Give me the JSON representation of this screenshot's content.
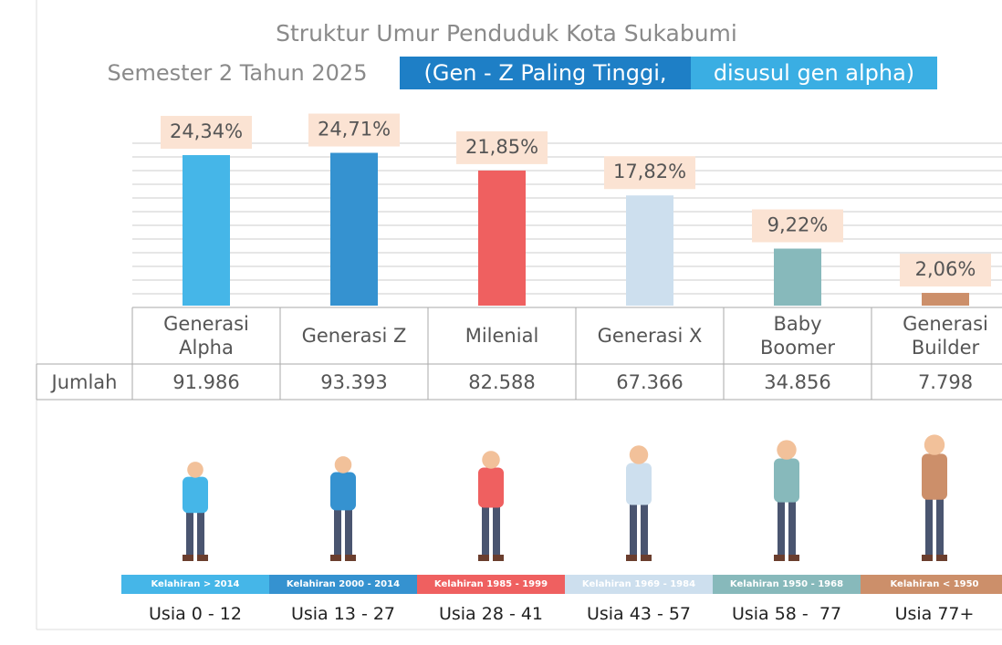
{
  "chart_data": {
    "type": "bar",
    "title": "Struktur Umur Penduduk Kota Sukabumi",
    "subtitle": "Semester 2 Tahun 2025",
    "highlight": [
      "(Gen - Z Paling Tinggi,",
      "disusul gen alpha)"
    ],
    "categories": [
      "Generasi Alpha",
      "Generasi Z",
      "Milenial",
      "Generasi X",
      "Baby Boomer",
      "Generasi Builder"
    ],
    "values": [
      24.34,
      24.71,
      21.85,
      17.82,
      9.22,
      2.06
    ],
    "value_labels": [
      "24,34%",
      "24,71%",
      "21,85%",
      "17,82%",
      "9,22%",
      "2,06%"
    ],
    "colors": [
      "#45b6e8",
      "#3592d0",
      "#ef6060",
      "#cddfee",
      "#87b9bb",
      "#cc8f6a"
    ],
    "ylim": [
      0,
      27
    ],
    "grid": true
  },
  "table": {
    "row_label": "Jumlah",
    "values": [
      "91.986",
      "93.393",
      "82.588",
      "67.366",
      "34.856",
      "7.798"
    ]
  },
  "births": [
    "Kelahiran > 2014",
    "Kelahiran 2000 - 2014",
    "Kelahiran 1985 - 1999",
    "Kelahiran 1969 - 1984",
    "Kelahiran 1950 - 1968",
    "Kelahiran < 1950"
  ],
  "ages": [
    "Usia 0 - 12",
    "Usia 13 - 27",
    "Usia 28 - 41",
    "Usia 43 - 57",
    "Usia 58 -  77",
    "Usia 77+"
  ]
}
